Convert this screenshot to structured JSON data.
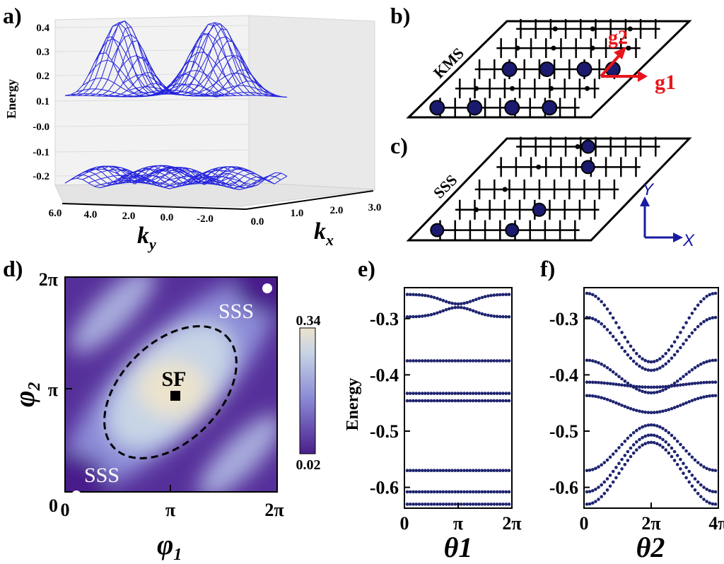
{
  "labels": {
    "a": "a)",
    "b": "b)",
    "c": "c)",
    "d": "d)",
    "e": "e)",
    "f": "f)"
  },
  "panel_a": {
    "ylabel": "Energy",
    "yticks": [
      "0.4",
      "0.3",
      "0.2",
      "0.1",
      "-0.0",
      "-0.1",
      "-0.2"
    ],
    "ky_ticks": [
      "6.0",
      "4.0",
      "2.0",
      "0.0",
      "-2.0"
    ],
    "kx_ticks": [
      "0.0",
      "1.0",
      "2.0",
      "3.0"
    ],
    "ky_label": "k",
    "ky_sub": "y",
    "kx_label": "k",
    "kx_sub": "x",
    "mesh_color": "#2222dd"
  },
  "panel_b": {
    "name": "KMS",
    "g1": "g1",
    "g2": "g2",
    "arrow_color": "#e8141b"
  },
  "panel_c": {
    "name": "SSS",
    "y_label": "Y",
    "x_label": "X",
    "axes_color": "#1a1aa0"
  },
  "panel_d": {
    "xticks": [
      "0",
      "π",
      "2π"
    ],
    "yticks": [
      "0",
      "π",
      "2π"
    ],
    "xlabel": "φ",
    "xlabel_sub": "1",
    "ylabel": "φ",
    "ylabel_sub": "2",
    "sss_top": "SSS",
    "sss_bottom": "SSS",
    "sf": "SF",
    "colorbar_max": "0.34",
    "colorbar_min": "0.02",
    "colors": {
      "low": "#4a1f8c",
      "mid": "#8c8cd6",
      "high": "#ece3cc"
    }
  },
  "chart_data": [
    {
      "type": "scatter",
      "panel": "e",
      "ylabel": "Energy",
      "xlabel": "θ1",
      "xticks": [
        "0",
        "π",
        "2π"
      ],
      "yticks": [
        "-0.3",
        "-0.4",
        "-0.5",
        "-0.6"
      ],
      "xlim": [
        0,
        6.2832
      ],
      "ylim": [
        -0.637,
        -0.245
      ],
      "bands": [
        {
          "kind": "cross",
          "e0": -0.257,
          "amp": 0.018,
          "n": 2
        },
        {
          "kind": "cross",
          "e0": -0.297,
          "amp": -0.018,
          "n": 2
        },
        {
          "kind": "flat",
          "e": -0.375
        },
        {
          "kind": "flat",
          "e": -0.433
        },
        {
          "kind": "flat",
          "e": -0.446
        },
        {
          "kind": "flat",
          "e": -0.57
        },
        {
          "kind": "flat",
          "e": -0.608
        },
        {
          "kind": "flat",
          "e": -0.63
        }
      ]
    },
    {
      "type": "scatter",
      "panel": "f",
      "xlabel": "θ2",
      "xticks": [
        "0",
        "2π",
        "4π"
      ],
      "yticks": [
        "-0.3",
        "-0.4",
        "-0.5",
        "-0.6"
      ],
      "xlim": [
        0,
        12.566
      ],
      "ylim": [
        -0.637,
        -0.245
      ],
      "bands": [
        {
          "e0": -0.255,
          "e1": -0.377
        },
        {
          "e0": -0.298,
          "e1": -0.392
        },
        {
          "e0": -0.374,
          "e1": -0.432
        },
        {
          "e0": -0.413,
          "e1": -0.422
        },
        {
          "e0": -0.437,
          "e1": -0.467
        },
        {
          "e0": -0.57,
          "e1": -0.489
        },
        {
          "e0": -0.608,
          "e1": -0.507
        },
        {
          "e0": -0.63,
          "e1": -0.52
        }
      ]
    }
  ]
}
